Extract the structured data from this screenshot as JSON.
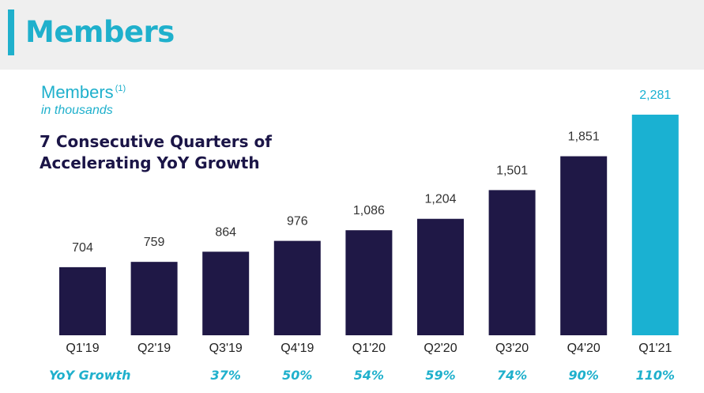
{
  "header": {
    "title": "Members"
  },
  "colors": {
    "bar": "#1f1846",
    "highlight": "#1ab1d2",
    "accent": "#1fb0cc",
    "headline": "#1b1547",
    "label": "#333333"
  },
  "chart_data": {
    "type": "bar",
    "title": "Members",
    "title_note": "(1)",
    "subtitle": "in thousands",
    "headline": [
      "7 Consecutive Quarters of",
      "Accelerating YoY Growth"
    ],
    "categories": [
      "Q1'19",
      "Q2'19",
      "Q3'19",
      "Q4'19",
      "Q1'20",
      "Q2'20",
      "Q3'20",
      "Q4'20",
      "Q1'21"
    ],
    "values": [
      704,
      759,
      864,
      976,
      1086,
      1204,
      1501,
      1851,
      2281
    ],
    "data_labels": [
      "704",
      "759",
      "864",
      "976",
      "1,086",
      "1,204",
      "1,501",
      "1,851",
      "2,281"
    ],
    "highlight_index": 8,
    "growth_row_label": "YoY Growth",
    "yoy_growth": [
      "",
      "",
      "37%",
      "50%",
      "54%",
      "59%",
      "74%",
      "90%",
      "110%"
    ],
    "grid": false,
    "legend": "none"
  }
}
